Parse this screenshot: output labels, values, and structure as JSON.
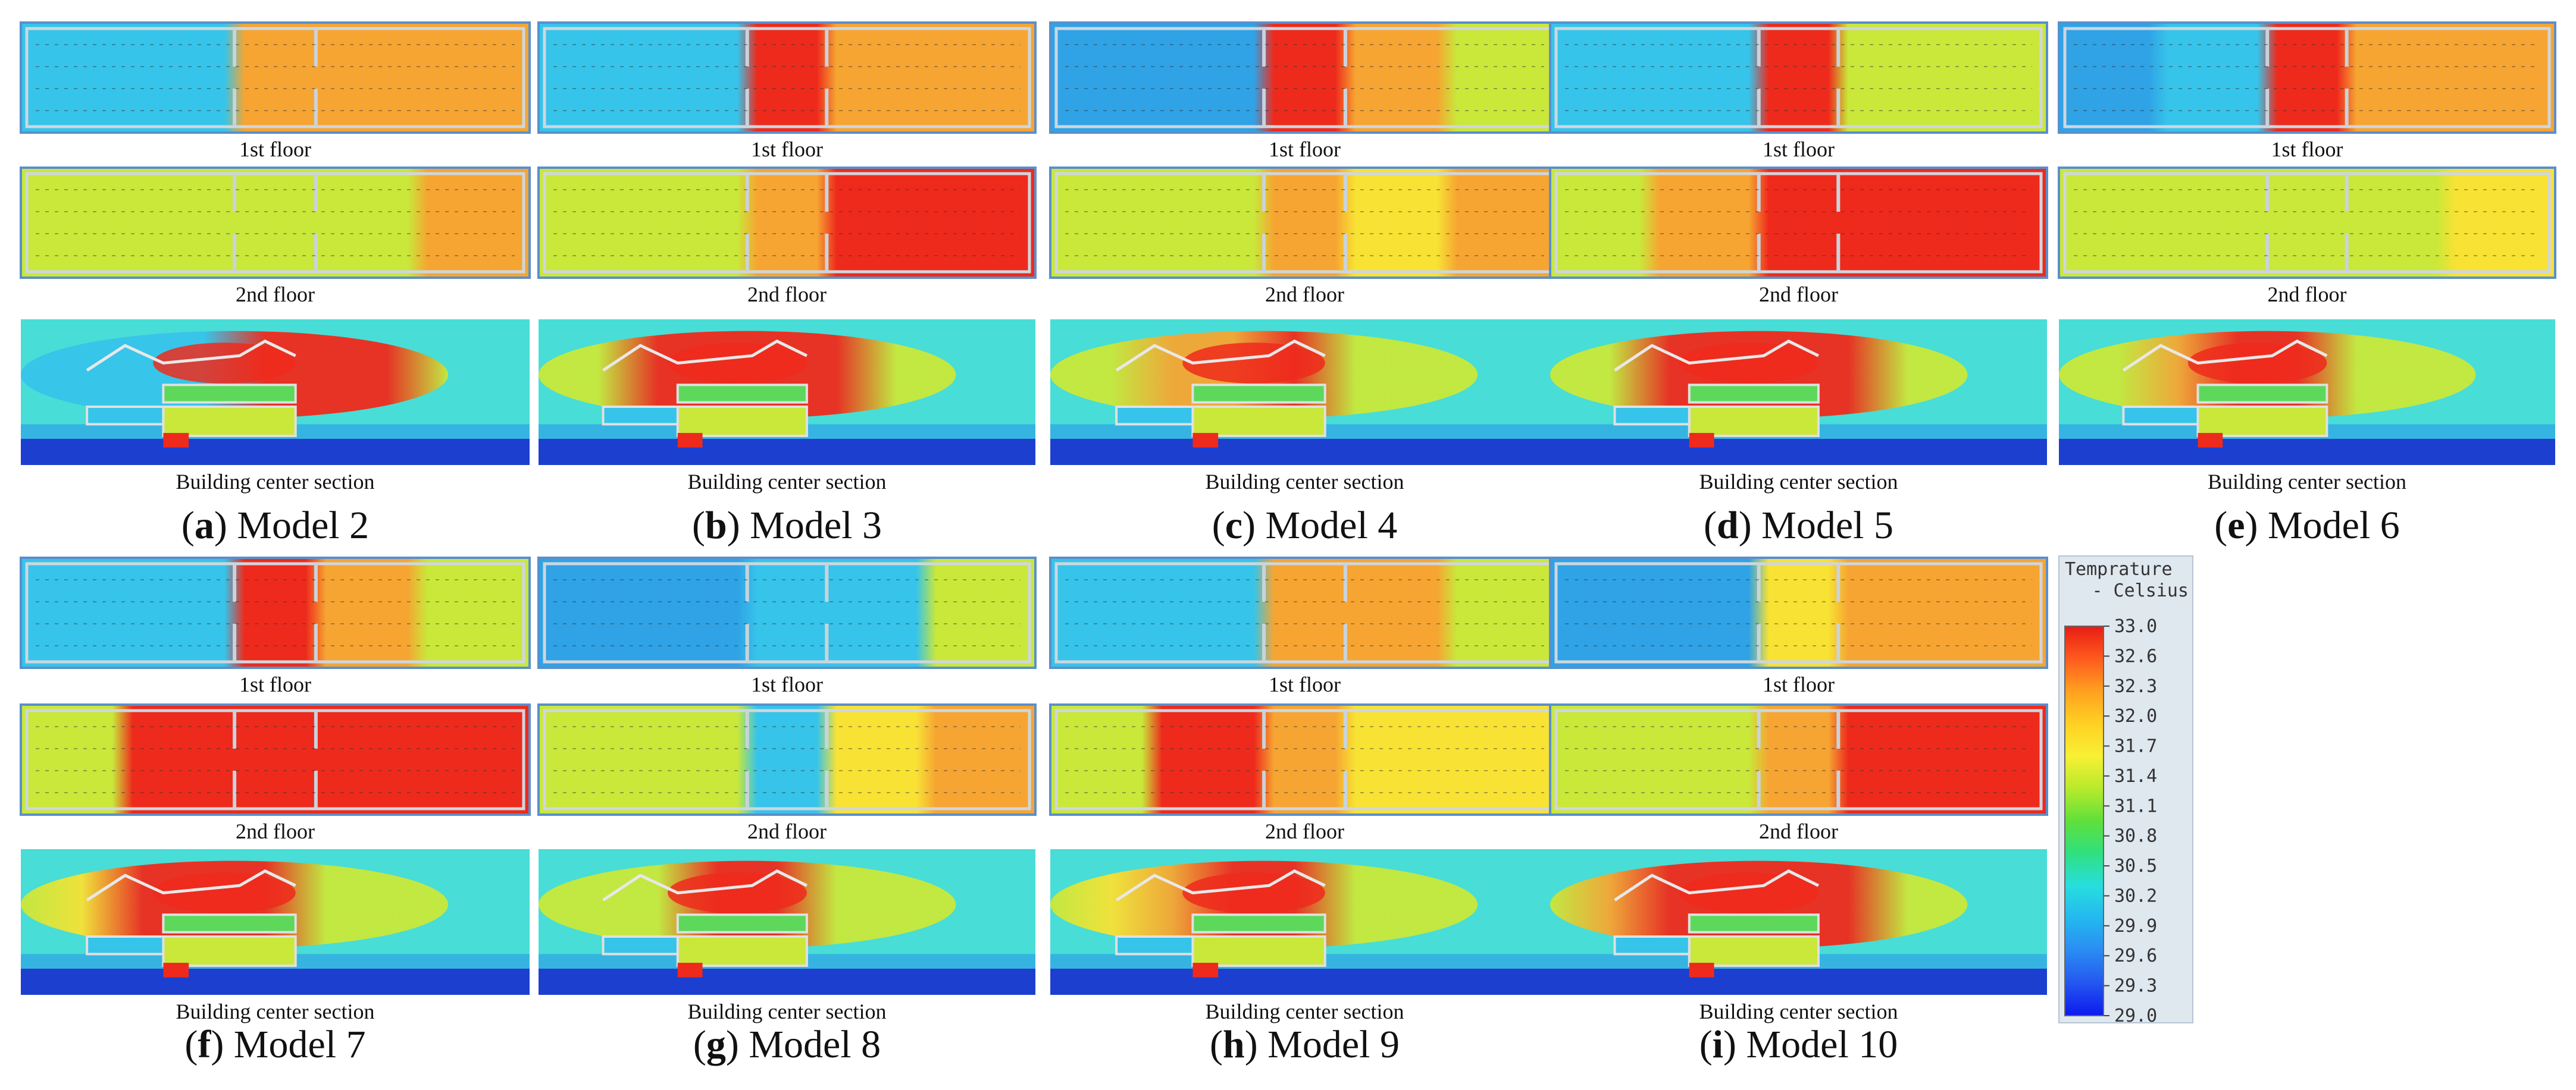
{
  "figure": {
    "panels": [
      {
        "letter": "a",
        "model": "Model 2",
        "c1": "ffaaa",
        "c2": "gggga",
        "s": "ffffrrrg"
      },
      {
        "letter": "b",
        "model": "Model 3",
        "c1": "ffraa",
        "c2": "ggarr",
        "s": "ggrrrrgg"
      },
      {
        "letter": "c",
        "model": "Model 4",
        "c1": "eerag",
        "c2": "ggaya",
        "s": "ggaarggg"
      },
      {
        "letter": "d",
        "model": "Model 5",
        "c1": "ffrgg",
        "c2": "garrr",
        "s": "ggrrrrgg"
      },
      {
        "letter": "e",
        "model": "Model 6",
        "c1": "efraa",
        "c2": "ggggy",
        "s": "ggarrggg"
      },
      {
        "letter": "f",
        "model": "Model 7",
        "c1": "ffrag",
        "c2": "grrrr",
        "s": "gyrrrggg"
      },
      {
        "letter": "g",
        "model": "Model 8",
        "c1": "eeffg",
        "c2": "ggfya",
        "s": "gggrrggg"
      },
      {
        "letter": "h",
        "model": "Model 9",
        "c1": "ffaag",
        "c2": "grayy",
        "s": "gyarrggg"
      },
      {
        "letter": "i",
        "model": "Model 10",
        "c1": "eeyaa",
        "c2": "ggarr",
        "s": "garrrrgg"
      }
    ],
    "labels": {
      "first_floor": "1st floor",
      "second_floor": "2nd floor",
      "section": "Building center section"
    }
  },
  "legend": {
    "title_line1": "Temprature",
    "title_line2": "- Celsius",
    "ticks": [
      "33.0",
      "32.6",
      "32.3",
      "32.0",
      "31.7",
      "31.4",
      "31.1",
      "30.8",
      "30.5",
      "30.2",
      "29.9",
      "29.6",
      "29.3",
      "29.0"
    ],
    "color_stops": [
      "#e81c14",
      "#ff5a1e",
      "#ffa020",
      "#ffd023",
      "#f8f034",
      "#b8ea2c",
      "#5fe03a",
      "#2fe080",
      "#27dede",
      "#24b8f0",
      "#2a8cf2",
      "#2456f0",
      "#0c1aee"
    ]
  },
  "colors": {
    "red": "#ee2a1c",
    "orange": "#f6a532",
    "yellow": "#f8e234",
    "yellowgreen": "#c9e83a",
    "green": "#5dd85a",
    "cyan": "#48ddd6",
    "lightblue": "#36c4ea",
    "blue": "#2fa3e6",
    "darkblue": "#1c3fcf",
    "frame": "#5a8fcc"
  }
}
